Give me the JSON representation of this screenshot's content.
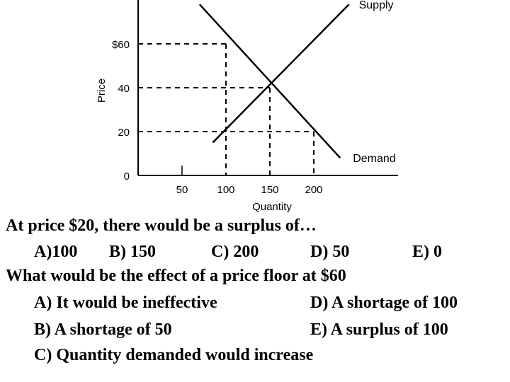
{
  "chart_data": {
    "type": "line",
    "ylabel": "Price",
    "xlabel": "Quantity",
    "x_ticks": [
      "50",
      "100",
      "150",
      "200"
    ],
    "x_tick_values": [
      50,
      100,
      150,
      200
    ],
    "y_ticks": [
      "0",
      "20",
      "40",
      "$60"
    ],
    "y_tick_values": [
      0,
      20,
      40,
      60
    ],
    "xlim": [
      0,
      300
    ],
    "ylim": [
      0,
      80
    ],
    "series": [
      {
        "name": "Supply",
        "points": [
          [
            85,
            15
          ],
          [
            240,
            78
          ]
        ]
      },
      {
        "name": "Demand",
        "points": [
          [
            70,
            78
          ],
          [
            230,
            8
          ]
        ]
      }
    ],
    "guide_points": [
      [
        100,
        60
      ],
      [
        150,
        40
      ],
      [
        200,
        20
      ]
    ],
    "marker_x": 50,
    "colors": {
      "line": "#000000"
    }
  },
  "questions": [
    {
      "prompt": "At price $20, there would be a surplus of…",
      "options": [
        "A)100",
        "B) 150",
        "C) 200",
        "D) 50",
        "E) 0"
      ]
    },
    {
      "prompt": "What would be the effect of a price floor at $60",
      "options": [
        "A) It would be ineffective",
        "D) A shortage of 100",
        "B) A shortage of 50",
        "E) A surplus of 100",
        "C) Quantity demanded would increase"
      ]
    }
  ]
}
